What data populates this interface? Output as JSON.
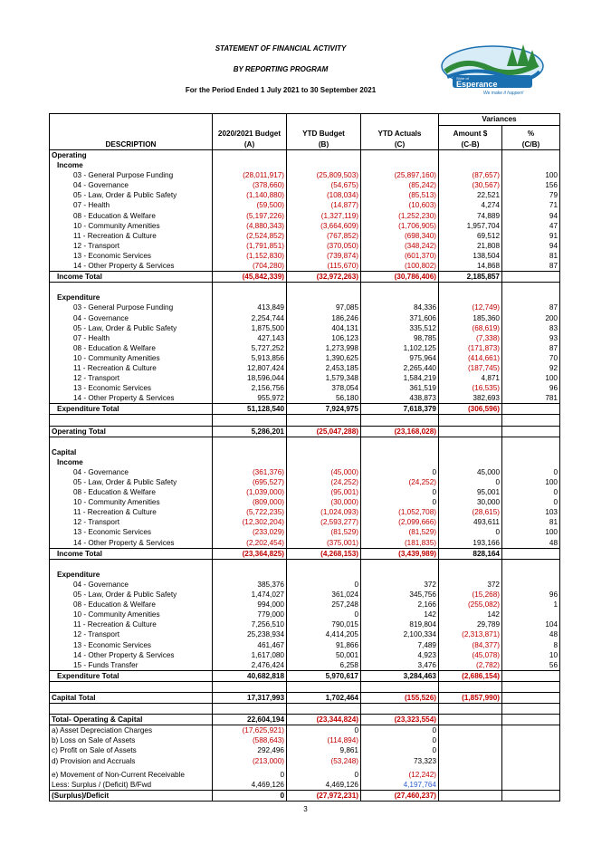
{
  "header": {
    "title": "STATEMENT OF FINANCIAL ACTIVITY",
    "subtitle": "BY REPORTING PROGRAM",
    "period": "For the Period Ended 1 July 2021 to 30 September 2021"
  },
  "logo": {
    "line1": "Shire of",
    "line2": "Esperance",
    "tagline": "We make it happen!",
    "accent": "#1a6fb0",
    "green": "#2f8a3a"
  },
  "colors": {
    "negative": "#c00000",
    "link": "#2f5fd0"
  },
  "table": {
    "variances_label": "Variances",
    "columns": [
      {
        "l1": "",
        "l2": "DESCRIPTION"
      },
      {
        "l1": "2020/2021 Budget",
        "l2": "(A)"
      },
      {
        "l1": "YTD Budget",
        "l2": "(B)"
      },
      {
        "l1": "YTD Actuals",
        "l2": "(C)"
      },
      {
        "l1": "Amount $",
        "l2": "(C-B)"
      },
      {
        "l1": "%",
        "l2": "(C/B)"
      }
    ],
    "rows": [
      {
        "cells": [
          "Operating"
        ],
        "bold": true,
        "indent": 0,
        "top": true
      },
      {
        "cells": [
          "Income"
        ],
        "bold": true,
        "indent": 1
      },
      {
        "cells": [
          "03 - General Purpose Funding",
          "(28,011,917)",
          "(25,809,503)",
          "(25,897,160)",
          "(87,657)",
          "100"
        ],
        "indent": 2
      },
      {
        "cells": [
          "04 - Governance",
          "(378,660)",
          "(54,675)",
          "(85,242)",
          "(30,567)",
          "156"
        ],
        "indent": 2
      },
      {
        "cells": [
          "05 - Law, Order & Public Safety",
          "(1,140,880)",
          "(108,034)",
          "(85,513)",
          "22,521",
          "79"
        ],
        "indent": 2
      },
      {
        "cells": [
          "07 - Health",
          "(59,500)",
          "(14,877)",
          "(10,603)",
          "4,274",
          "71"
        ],
        "indent": 2
      },
      {
        "cells": [
          "08 - Education & Welfare",
          "(5,197,226)",
          "(1,327,119)",
          "(1,252,230)",
          "74,889",
          "94"
        ],
        "indent": 2
      },
      {
        "cells": [
          "10 - Community Amenities",
          "(4,880,343)",
          "(3,664,609)",
          "(1,706,905)",
          "1,957,704",
          "47"
        ],
        "indent": 2
      },
      {
        "cells": [
          "11 - Recreation & Culture",
          "(2,524,852)",
          "(767,852)",
          "(698,340)",
          "69,512",
          "91"
        ],
        "indent": 2
      },
      {
        "cells": [
          "12 - Transport",
          "(1,791,851)",
          "(370,050)",
          "(348,242)",
          "21,808",
          "94"
        ],
        "indent": 2
      },
      {
        "cells": [
          "13 - Economic Services",
          "(1,152,830)",
          "(739,874)",
          "(601,370)",
          "138,504",
          "81"
        ],
        "indent": 2
      },
      {
        "cells": [
          "14 - Other Property & Services",
          "(704,280)",
          "(115,670)",
          "(100,802)",
          "14,868",
          "87"
        ],
        "indent": 2
      },
      {
        "cells": [
          "Income Total",
          "(45,842,339)",
          "(32,972,263)",
          "(30,786,406)",
          "2,185,857",
          ""
        ],
        "bold": true,
        "indent": 1,
        "top": true,
        "bottom": true
      },
      {
        "cells": [
          ""
        ],
        "indent": 0
      },
      {
        "cells": [
          "Expenditure"
        ],
        "bold": true,
        "indent": 1
      },
      {
        "cells": [
          "03 - General Purpose Funding",
          "413,849",
          "97,085",
          "84,336",
          "(12,749)",
          "87"
        ],
        "indent": 2
      },
      {
        "cells": [
          "04 - Governance",
          "2,254,744",
          "186,246",
          "371,606",
          "185,360",
          "200"
        ],
        "indent": 2
      },
      {
        "cells": [
          "05 - Law, Order & Public Safety",
          "1,875,500",
          "404,131",
          "335,512",
          "(68,619)",
          "83"
        ],
        "indent": 2
      },
      {
        "cells": [
          "07 - Health",
          "427,143",
          "106,123",
          "98,785",
          "(7,338)",
          "93"
        ],
        "indent": 2
      },
      {
        "cells": [
          "08 - Education & Welfare",
          "5,727,252",
          "1,273,998",
          "1,102,125",
          "(171,873)",
          "87"
        ],
        "indent": 2
      },
      {
        "cells": [
          "10 - Community Amenities",
          "5,913,856",
          "1,390,625",
          "975,964",
          "(414,661)",
          "70"
        ],
        "indent": 2
      },
      {
        "cells": [
          "11 - Recreation & Culture",
          "12,807,424",
          "2,453,185",
          "2,265,440",
          "(187,745)",
          "92"
        ],
        "indent": 2
      },
      {
        "cells": [
          "12 - Transport",
          "18,596,044",
          "1,579,348",
          "1,584,219",
          "4,871",
          "100"
        ],
        "indent": 2
      },
      {
        "cells": [
          "13 - Economic Services",
          "2,156,756",
          "378,054",
          "361,519",
          "(16,535)",
          "96"
        ],
        "indent": 2
      },
      {
        "cells": [
          "14 - Other Property & Services",
          "955,972",
          "56,180",
          "438,873",
          "382,693",
          "781"
        ],
        "indent": 2
      },
      {
        "cells": [
          "Expenditure Total",
          "51,128,540",
          "7,924,975",
          "7,618,379",
          "(306,596)",
          ""
        ],
        "bold": true,
        "indent": 1,
        "top": true,
        "bottom": true
      },
      {
        "cells": [
          ""
        ],
        "indent": 0
      },
      {
        "cells": [
          "Operating Total",
          "5,286,201",
          "(25,047,288)",
          "(23,168,028)",
          "",
          ""
        ],
        "bold": true,
        "indent": 0,
        "top": true,
        "bottom": true
      },
      {
        "cells": [
          ""
        ],
        "indent": 0
      },
      {
        "cells": [
          "Capital"
        ],
        "bold": true,
        "indent": 0
      },
      {
        "cells": [
          "Income"
        ],
        "bold": true,
        "indent": 1
      },
      {
        "cells": [
          "04 - Governance",
          "(361,376)",
          "(45,000)",
          "0",
          "45,000",
          "0"
        ],
        "indent": 2
      },
      {
        "cells": [
          "05 - Law, Order & Public Safety",
          "(695,527)",
          "(24,252)",
          "(24,252)",
          "0",
          "100"
        ],
        "indent": 2
      },
      {
        "cells": [
          "08 - Education & Welfare",
          "(1,039,000)",
          "(95,001)",
          "0",
          "95,001",
          "0"
        ],
        "indent": 2
      },
      {
        "cells": [
          "10 - Community Amenities",
          "(809,000)",
          "(30,000)",
          "0",
          "30,000",
          "0"
        ],
        "indent": 2
      },
      {
        "cells": [
          "11 - Recreation & Culture",
          "(5,722,235)",
          "(1,024,093)",
          "(1,052,708)",
          "(28,615)",
          "103"
        ],
        "indent": 2
      },
      {
        "cells": [
          "12 - Transport",
          "(12,302,204)",
          "(2,593,277)",
          "(2,099,666)",
          "493,611",
          "81"
        ],
        "indent": 2
      },
      {
        "cells": [
          "13 - Economic Services",
          "(233,029)",
          "(81,529)",
          "(81,529)",
          "0",
          "100"
        ],
        "indent": 2
      },
      {
        "cells": [
          "14 - Other Property & Services",
          "(2,202,454)",
          "(375,001)",
          "(181,835)",
          "193,166",
          "48"
        ],
        "indent": 2
      },
      {
        "cells": [
          "Income Total",
          "(23,364,825)",
          "(4,268,153)",
          "(3,439,989)",
          "828,164",
          ""
        ],
        "bold": true,
        "indent": 1,
        "top": true,
        "bottom": true
      },
      {
        "cells": [
          ""
        ],
        "indent": 0
      },
      {
        "cells": [
          "Expenditure"
        ],
        "bold": true,
        "indent": 1
      },
      {
        "cells": [
          "04 - Governance",
          "385,376",
          "0",
          "372",
          "372",
          ""
        ],
        "indent": 2
      },
      {
        "cells": [
          "05 - Law, Order & Public Safety",
          "1,474,027",
          "361,024",
          "345,756",
          "(15,268)",
          "96"
        ],
        "indent": 2
      },
      {
        "cells": [
          "08 - Education & Welfare",
          "994,000",
          "257,248",
          "2,166",
          "(255,082)",
          "1"
        ],
        "indent": 2
      },
      {
        "cells": [
          "10 - Community Amenities",
          "779,000",
          "0",
          "142",
          "142",
          ""
        ],
        "indent": 2
      },
      {
        "cells": [
          "11 - Recreation & Culture",
          "7,256,510",
          "790,015",
          "819,804",
          "29,789",
          "104"
        ],
        "indent": 2
      },
      {
        "cells": [
          "12 - Transport",
          "25,238,934",
          "4,414,205",
          "2,100,334",
          "(2,313,871)",
          "48"
        ],
        "indent": 2
      },
      {
        "cells": [
          "13 - Economic Services",
          "461,467",
          "91,866",
          "7,489",
          "(84,377)",
          "8"
        ],
        "indent": 2
      },
      {
        "cells": [
          "14 - Other Property & Services",
          "1,617,080",
          "50,001",
          "4,923",
          "(45,078)",
          "10"
        ],
        "indent": 2
      },
      {
        "cells": [
          "15 - Funds Transfer",
          "2,476,424",
          "6,258",
          "3,476",
          "(2,782)",
          "56"
        ],
        "indent": 2
      },
      {
        "cells": [
          "Expenditure Total",
          "40,682,818",
          "5,970,617",
          "3,284,463",
          "(2,686,154)",
          ""
        ],
        "bold": true,
        "indent": 1,
        "top": true,
        "bottom": true
      },
      {
        "cells": [
          ""
        ],
        "indent": 0
      },
      {
        "cells": [
          "Capital Total",
          "17,317,993",
          "1,702,464",
          "(155,526)",
          "(1,857,990)",
          ""
        ],
        "bold": true,
        "indent": 0,
        "top": true,
        "bottom": true
      },
      {
        "cells": [
          ""
        ],
        "indent": 0
      },
      {
        "cells": [
          "Total- Operating & Capital",
          "22,604,194",
          "(23,344,824)",
          "(23,323,554)",
          "",
          ""
        ],
        "bold": true,
        "indent": 0,
        "top": true
      },
      {
        "cells": [
          "a) Asset Depreciation Charges",
          "(17,625,921)",
          "0",
          "0",
          "",
          ""
        ],
        "indent": 0,
        "top": true
      },
      {
        "cells": [
          "b) Loss on Sale of Assets",
          "(588,643)",
          "(114,894)",
          "0",
          "",
          ""
        ],
        "indent": 0
      },
      {
        "cells": [
          "c) Profit on Sale of Assets",
          "292,496",
          "9,861",
          "0",
          "",
          ""
        ],
        "indent": 0
      },
      {
        "cells": [
          "d) Provision and Accruals",
          "(213,000)",
          "(53,248)",
          "73,323",
          "",
          ""
        ],
        "indent": 0
      },
      {
        "cells": [
          ""
        ],
        "indent": 0,
        "short": true
      },
      {
        "cells": [
          "e) Movement of Non-Current Receivable",
          "0",
          "0",
          "(12,242)",
          "",
          ""
        ],
        "indent": 0
      },
      {
        "cells": [
          "Less: Surplus / (Deficit) B/Fwd",
          "4,469,126",
          "4,469,126",
          "4,197,764",
          "",
          ""
        ],
        "indent": 0,
        "blueCol": 3
      },
      {
        "cells": [
          "(Surplus)/Deficit",
          "0",
          "(27,972,231)",
          "(27,460,237)",
          "",
          ""
        ],
        "bold": true,
        "indent": 0,
        "top": true,
        "bottom": true
      }
    ]
  },
  "page_number": "3"
}
